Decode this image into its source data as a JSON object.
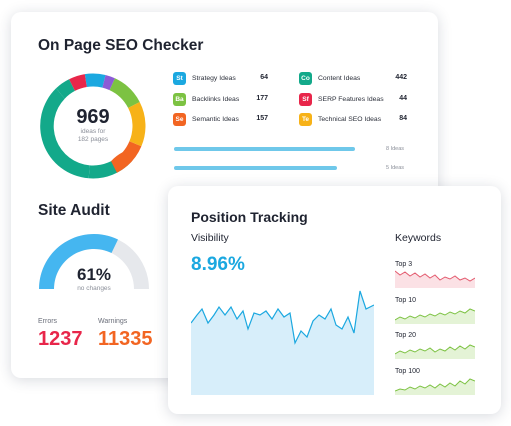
{
  "seo_checker": {
    "title": "On Page SEO Checker",
    "total": "969",
    "total_caption_1": "ideas for",
    "total_caption_2": "182 pages",
    "ideas": [
      {
        "badge": "St",
        "label": "Strategy Ideas",
        "value": "64",
        "color": "#1ba8e0"
      },
      {
        "badge": "Ba",
        "label": "Backlinks Ideas",
        "value": "177",
        "color": "#7cc242"
      },
      {
        "badge": "Se",
        "label": "Semantic Ideas",
        "value": "157",
        "color": "#f26522"
      },
      {
        "badge": "Co",
        "label": "Content Ideas",
        "value": "442",
        "color": "#13a98a"
      },
      {
        "badge": "Sf",
        "label": "SERP Features Ideas",
        "value": "44",
        "color": "#e8264a"
      },
      {
        "badge": "Te",
        "label": "Technical SEO Ideas",
        "value": "84",
        "color": "#f7b218"
      }
    ],
    "bars": [
      {
        "label": "8 Ideas",
        "fraction": 1.0
      },
      {
        "label": "5 Ideas",
        "fraction": 0.9
      }
    ]
  },
  "site_audit": {
    "title": "Site Audit",
    "percent": "61%",
    "caption": "no changes",
    "level": 0.61,
    "errors_label": "Errors",
    "errors_value": "1237",
    "warnings_label": "Warnings",
    "warnings_value": "11335",
    "colors": {
      "progress": "#45b6f0",
      "track": "#e6e8ec",
      "errors": "#e8264a",
      "warnings": "#f26522"
    }
  },
  "position_tracking": {
    "title": "Position Tracking",
    "visibility_label": "Visibility",
    "visibility_value": "8.96%",
    "keywords_label": "Keywords",
    "keywords": [
      {
        "label": "Top 3",
        "color": "#e35a6e"
      },
      {
        "label": "Top 10",
        "color": "#7cc242"
      },
      {
        "label": "Top 20",
        "color": "#7cc242"
      },
      {
        "label": "Top 100",
        "color": "#7cc242"
      }
    ],
    "colors": {
      "visibility": "#1ba8e0"
    }
  }
}
